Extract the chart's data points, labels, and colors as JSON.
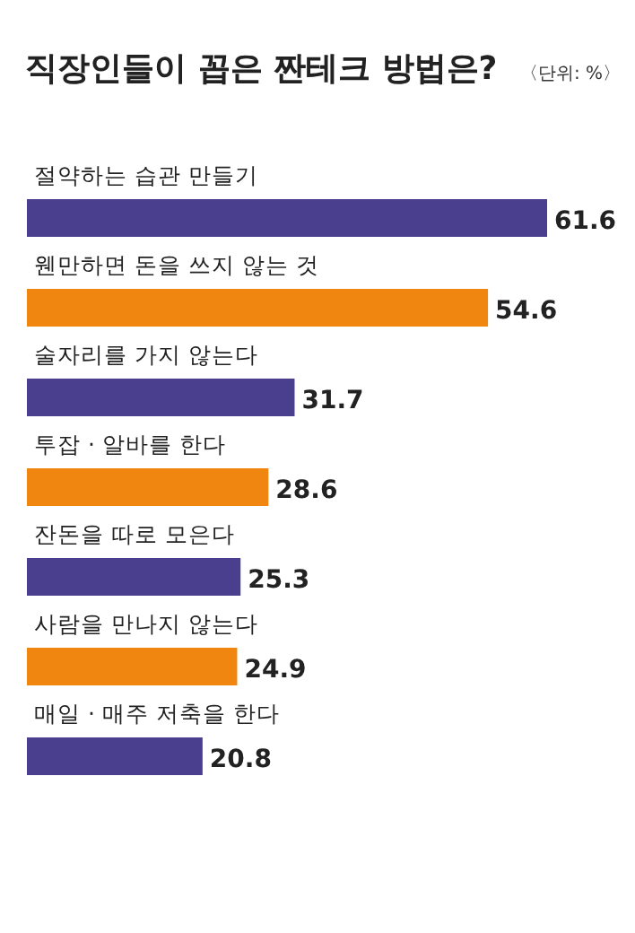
{
  "chart_data": {
    "type": "bar",
    "orientation": "horizontal",
    "title": "직장인들이 꼽은 짠테크 방법은?",
    "subtitle": "〈단위: %〉",
    "categories": [
      "절약하는 습관 만들기",
      "웬만하면 돈을 쓰지 않는 것",
      "술자리를 가지 않는다",
      "투잡 · 알바를 한다",
      "잔돈을 따로 모은다",
      "사람을 만나지 않는다",
      "매일 · 매주 저축을 한다"
    ],
    "values": [
      61.6,
      54.6,
      31.7,
      28.6,
      25.3,
      24.9,
      20.8
    ],
    "colors": [
      "#4a3f8f",
      "#f0850f",
      "#4a3f8f",
      "#f0850f",
      "#4a3f8f",
      "#f0850f",
      "#4a3f8f"
    ],
    "data_labels": true
  }
}
